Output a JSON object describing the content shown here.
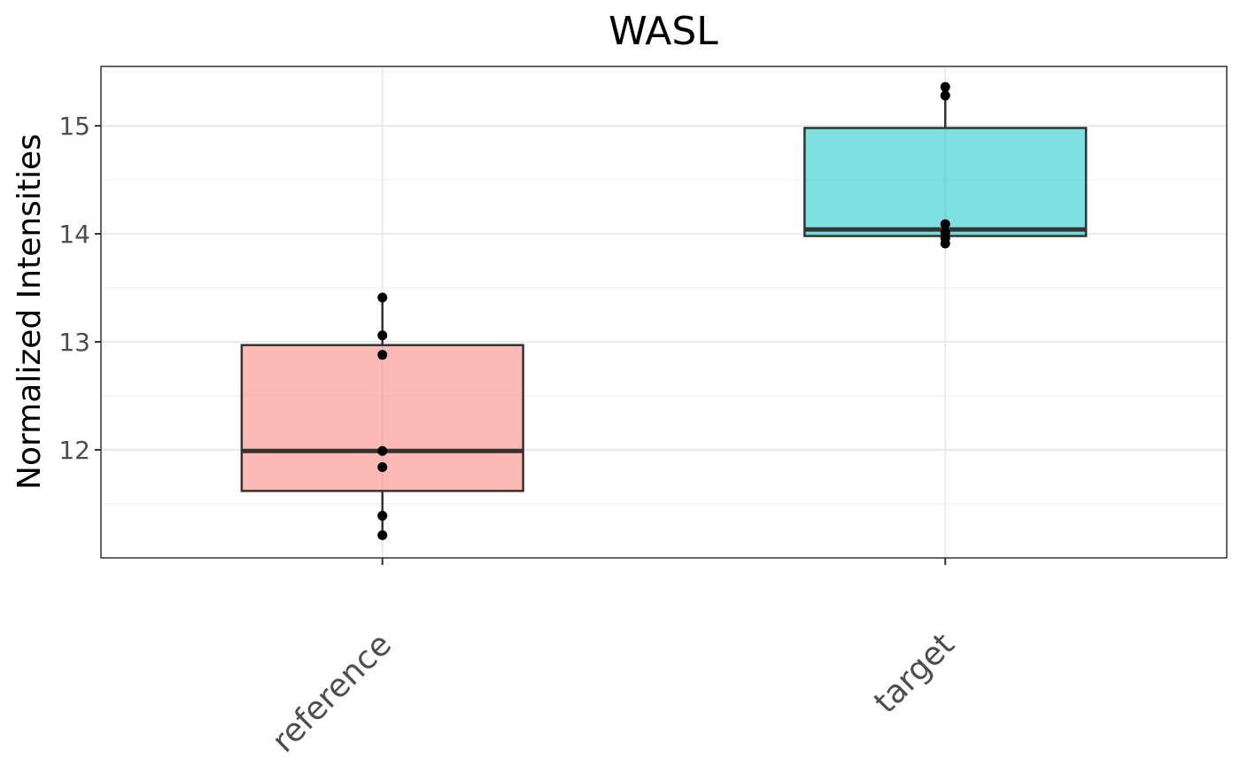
{
  "chart_data": {
    "type": "box",
    "title": "WASL",
    "xlabel": "",
    "ylabel": "Normalized Intensities",
    "categories": [
      "reference",
      "target"
    ],
    "ylim": [
      11.0,
      15.55
    ],
    "yticks": [
      12,
      13,
      14,
      15
    ],
    "grid": true,
    "legend": "none",
    "boxes": [
      {
        "category": "reference",
        "color": "#f8766d",
        "min": 11.21,
        "q1": 11.62,
        "median": 11.99,
        "q3": 12.97,
        "max": 13.41,
        "points": [
          13.41,
          13.06,
          12.88,
          11.99,
          11.84,
          11.39,
          11.21
        ]
      },
      {
        "category": "target",
        "color": "#00bfc4",
        "min": 13.91,
        "q1": 13.98,
        "median": 14.04,
        "q3": 14.98,
        "max": 15.36,
        "points": [
          15.36,
          15.28,
          14.09,
          14.01,
          13.96,
          13.91
        ]
      }
    ]
  }
}
